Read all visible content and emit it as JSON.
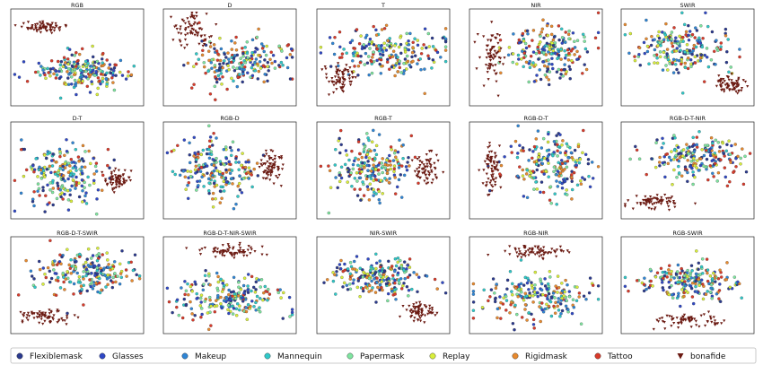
{
  "chart_data": {
    "type": "scatter",
    "description_kind": "t-SNE embedding grid",
    "panels": [
      {
        "title": "RGB",
        "layout": "blob-top-left-bonafide"
      },
      {
        "title": "D",
        "layout": "diagonal"
      },
      {
        "title": "T",
        "layout": "broad"
      },
      {
        "title": "NIR",
        "layout": "left-bonafide"
      },
      {
        "title": "SWIR",
        "layout": "right-bonafide"
      },
      {
        "title": "D-T",
        "layout": "center-right-bonafide"
      },
      {
        "title": "RGB-D",
        "layout": "right-island"
      },
      {
        "title": "RGB-T",
        "layout": "right-island"
      },
      {
        "title": "RGB-D-T",
        "layout": "left-bonafide"
      },
      {
        "title": "RGB-D-T-NIR",
        "layout": "bottom-left-bonafide"
      },
      {
        "title": "RGB-D-T-SWIR",
        "layout": "bottom-left-bonafide"
      },
      {
        "title": "RGB-D-T-NIR-SWIR",
        "layout": "top-bonafide"
      },
      {
        "title": "NIR-SWIR",
        "layout": "bottom-right-bonafide"
      },
      {
        "title": "RGB-NIR",
        "layout": "top-bonafide"
      },
      {
        "title": "RGB-SWIR",
        "layout": "bottom-bonafide"
      }
    ],
    "legend": [
      {
        "name": "Flexiblemask",
        "color": "#2b3a8f",
        "marker": "circle"
      },
      {
        "name": "Glasses",
        "color": "#2f48c6",
        "marker": "circle"
      },
      {
        "name": "Makeup",
        "color": "#2f86d6",
        "marker": "circle"
      },
      {
        "name": "Mannequin",
        "color": "#2fc9c9",
        "marker": "circle"
      },
      {
        "name": "Papermask",
        "color": "#7fe6a0",
        "marker": "circle"
      },
      {
        "name": "Replay",
        "color": "#d9ef3a",
        "marker": "circle"
      },
      {
        "name": "Rigidmask",
        "color": "#e88a2e",
        "marker": "circle"
      },
      {
        "name": "Tattoo",
        "color": "#d93a2a",
        "marker": "circle"
      },
      {
        "name": "bonafide",
        "color": "#6b1a12",
        "marker": "triangle-down"
      }
    ],
    "grid": false,
    "axes_ticks": false,
    "legend_position": "bottom"
  }
}
